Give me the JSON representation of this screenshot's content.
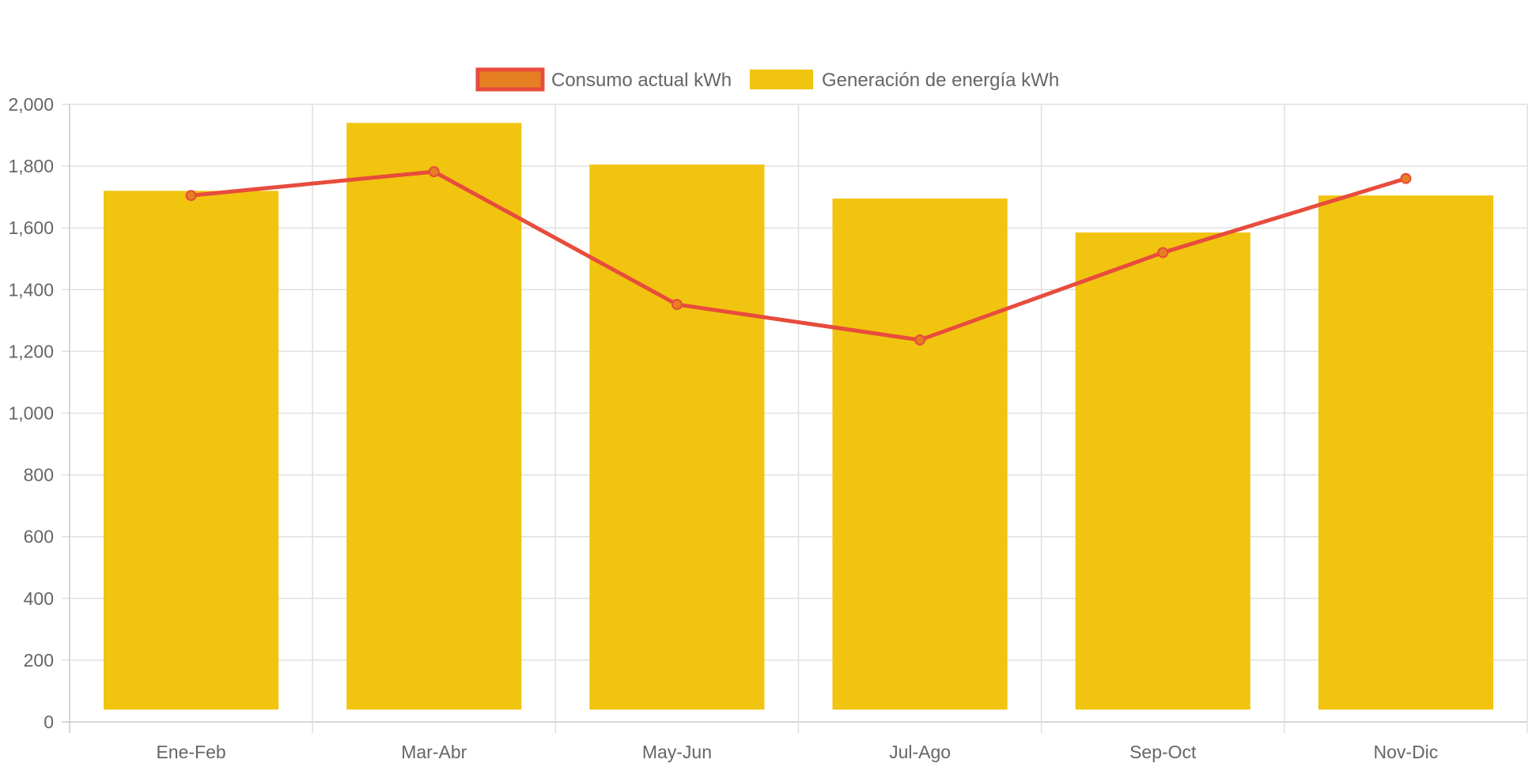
{
  "chart_data": {
    "type": "bar",
    "title": "",
    "xlabel": "",
    "ylabel": "",
    "categories": [
      "Ene-Feb",
      "Mar-Abr",
      "May-Jun",
      "Jul-Ago",
      "Sep-Oct",
      "Nov-Dic"
    ],
    "ylim": [
      0,
      2000
    ],
    "yticks": [
      "0",
      "200",
      "400",
      "600",
      "800",
      "1,000",
      "1,200",
      "1,400",
      "1,600",
      "1,800",
      "2,000"
    ],
    "grid": true,
    "legend_position": "top",
    "series": [
      {
        "name": "Consumo actual kWh",
        "type": "line",
        "color": "#e74c3c",
        "point_color": "#e67e22",
        "values": [
          1705,
          1782,
          1352,
          1237,
          1520,
          1760
        ]
      },
      {
        "name": "Generación de energía kWh",
        "type": "bar",
        "color": "#f1c40f",
        "values": [
          1720,
          1940,
          1805,
          1695,
          1585,
          1705
        ],
        "base": 40
      }
    ]
  }
}
